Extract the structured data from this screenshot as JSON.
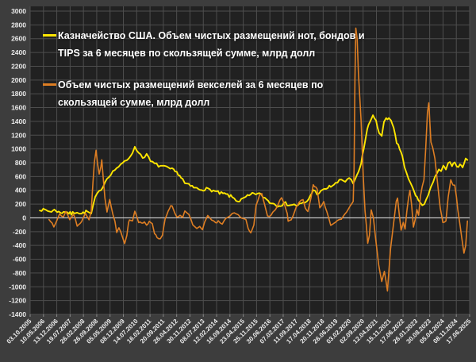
{
  "colors": {
    "outer_background": "#3d3d3d",
    "plot_background": "#212121",
    "gridline": "#4e4e4e",
    "zero_line": "#d9d9d9",
    "axis_text": "#ececec",
    "series_notes_bonds_tips": "#ffe600",
    "series_bills": "#de7e23"
  },
  "legend": {
    "items": [
      {
        "swatch": "yellow-line-swatch",
        "color": "#ffe600"
      },
      {
        "swatch": "orange-line-swatch",
        "color": "#de7e23"
      }
    ]
  },
  "chart_data": {
    "type": "line",
    "title": "",
    "xlabel": "",
    "ylabel": "",
    "grid": true,
    "legend_position": "top-left-inside",
    "y_axis": {
      "min": -1400,
      "max": 3000,
      "step": 200,
      "ticks": [
        "3000",
        "2800",
        "2600",
        "2400",
        "2200",
        "2000",
        "1800",
        "1600",
        "1400",
        "1200",
        "1000",
        "800",
        "600",
        "400",
        "200",
        "0",
        "-200",
        "-400",
        "-600",
        "-800",
        "-1000",
        "-1200",
        "-1400"
      ]
    },
    "x_axis": {
      "labels": [
        "03.10.2005",
        "10.05.2006",
        "13.12.2006",
        "19.07.2007",
        "26.02.2008",
        "26.09.2008",
        "05.05.2009",
        "08.12.2009",
        "14.07.2010",
        "16.02.2011",
        "20.09.2011",
        "26.04.2012",
        "30.11.2012",
        "08.07.2013",
        "12.02.2014",
        "16.09.2014",
        "23.04.2015",
        "25.11.2015",
        "30.06.2016",
        "07.02.2017",
        "11.09.2017",
        "17.04.2018",
        "20.11.2018",
        "26.06.2019",
        "03.02.2020",
        "02.09.2020",
        "12.04.2021",
        "15.11.2021",
        "17.06.2022",
        "26.01.2023",
        "30.08.2023",
        "05.04.2024",
        "08.11.2024",
        "17.06.2025"
      ]
    },
    "series": [
      {
        "name": "Казначейство США. Объем чистых размещений нот, бондов и TIPS за 6 месяцев по скользящей сумме, млрд долл",
        "color": "#ffe600",
        "width": 1.9,
        "fuzz": 26,
        "points": [
          [
            0.022,
            130
          ],
          [
            0.03,
            110
          ],
          [
            0.036,
            115
          ],
          [
            0.045,
            92
          ],
          [
            0.052,
            105
          ],
          [
            0.058,
            115
          ],
          [
            0.065,
            80
          ],
          [
            0.07,
            69
          ],
          [
            0.076,
            95
          ],
          [
            0.081,
            92
          ],
          [
            0.088,
            70
          ],
          [
            0.094,
            58
          ],
          [
            0.1,
            80
          ],
          [
            0.107,
            92
          ],
          [
            0.112,
            70
          ],
          [
            0.117,
            58
          ],
          [
            0.124,
            85
          ],
          [
            0.13,
            92
          ],
          [
            0.135,
            70
          ],
          [
            0.139,
            58
          ],
          [
            0.148,
            300
          ],
          [
            0.157,
            380
          ],
          [
            0.166,
            461
          ],
          [
            0.171,
            530
          ],
          [
            0.179,
            610
          ],
          [
            0.188,
            668
          ],
          [
            0.197,
            726
          ],
          [
            0.206,
            760
          ],
          [
            0.215,
            818
          ],
          [
            0.224,
            864
          ],
          [
            0.233,
            956
          ],
          [
            0.238,
            1014
          ],
          [
            0.247,
            956
          ],
          [
            0.256,
            875
          ],
          [
            0.265,
            922
          ],
          [
            0.274,
            818
          ],
          [
            0.283,
            784
          ],
          [
            0.292,
            760
          ],
          [
            0.301,
            749
          ],
          [
            0.31,
            726
          ],
          [
            0.323,
            700
          ],
          [
            0.337,
            640
          ],
          [
            0.347,
            560
          ],
          [
            0.352,
            500
          ],
          [
            0.365,
            460
          ],
          [
            0.383,
            415
          ],
          [
            0.397,
            420
          ],
          [
            0.413,
            403
          ],
          [
            0.431,
            357
          ],
          [
            0.446,
            340
          ],
          [
            0.46,
            300
          ],
          [
            0.473,
            242
          ],
          [
            0.484,
            270
          ],
          [
            0.491,
            300
          ],
          [
            0.502,
            330
          ],
          [
            0.509,
            357
          ],
          [
            0.522,
            346
          ],
          [
            0.534,
            290
          ],
          [
            0.545,
            230
          ],
          [
            0.563,
            184
          ],
          [
            0.581,
            207
          ],
          [
            0.592,
            190
          ],
          [
            0.605,
            184
          ],
          [
            0.617,
            200
          ],
          [
            0.63,
            230
          ],
          [
            0.644,
            403
          ],
          [
            0.653,
            357
          ],
          [
            0.662,
            380
          ],
          [
            0.677,
            438
          ],
          [
            0.695,
            495
          ],
          [
            0.708,
            553
          ],
          [
            0.717,
            530
          ],
          [
            0.726,
            587
          ],
          [
            0.735,
            495
          ],
          [
            0.74,
            553
          ],
          [
            0.747,
            668
          ],
          [
            0.753,
            783
          ],
          [
            0.756,
            898
          ],
          [
            0.762,
            1100
          ],
          [
            0.767,
            1300
          ],
          [
            0.773,
            1394
          ],
          [
            0.78,
            1475
          ],
          [
            0.787,
            1420
          ],
          [
            0.794,
            1221
          ],
          [
            0.8,
            1180
          ],
          [
            0.805,
            1400
          ],
          [
            0.81,
            1460
          ],
          [
            0.816,
            1440
          ],
          [
            0.821,
            1400
          ],
          [
            0.827,
            1300
          ],
          [
            0.834,
            1094
          ],
          [
            0.841,
            1000
          ],
          [
            0.847,
            898
          ],
          [
            0.852,
            726
          ],
          [
            0.861,
            560
          ],
          [
            0.87,
            438
          ],
          [
            0.877,
            330
          ],
          [
            0.883,
            260
          ],
          [
            0.888,
            230
          ],
          [
            0.892,
            173
          ],
          [
            0.897,
            200
          ],
          [
            0.901,
            265
          ],
          [
            0.906,
            330
          ],
          [
            0.912,
            438
          ],
          [
            0.917,
            530
          ],
          [
            0.921,
            610
          ],
          [
            0.926,
            660
          ],
          [
            0.93,
            702
          ],
          [
            0.935,
            680
          ],
          [
            0.94,
            740
          ],
          [
            0.946,
            700
          ],
          [
            0.951,
            780
          ],
          [
            0.955,
            818
          ],
          [
            0.96,
            750
          ],
          [
            0.966,
            800
          ],
          [
            0.971,
            730
          ],
          [
            0.978,
            760
          ],
          [
            0.984,
            720
          ],
          [
            0.987,
            800
          ],
          [
            0.991,
            876
          ],
          [
            0.995,
            840
          ]
        ]
      },
      {
        "name": "Объем чистых размещений векселей за 6 месяцев по скользящей сумме, млрд долл",
        "color": "#de7e23",
        "width": 1.6,
        "fuzz": 13,
        "points": [
          [
            0.043,
            -23
          ],
          [
            0.05,
            -80
          ],
          [
            0.054,
            -138
          ],
          [
            0.061,
            -30
          ],
          [
            0.067,
            58
          ],
          [
            0.076,
            12
          ],
          [
            0.081,
            92
          ],
          [
            0.09,
            -23
          ],
          [
            0.099,
            58
          ],
          [
            0.107,
            -115
          ],
          [
            0.117,
            -58
          ],
          [
            0.126,
            58
          ],
          [
            0.134,
            -23
          ],
          [
            0.139,
            100
          ],
          [
            0.143,
            518
          ],
          [
            0.146,
            800
          ],
          [
            0.15,
            980
          ],
          [
            0.153,
            800
          ],
          [
            0.157,
            634
          ],
          [
            0.161,
            750
          ],
          [
            0.163,
            841
          ],
          [
            0.166,
            600
          ],
          [
            0.17,
            288
          ],
          [
            0.175,
            92
          ],
          [
            0.181,
            265
          ],
          [
            0.188,
            58
          ],
          [
            0.193,
            -50
          ],
          [
            0.197,
            -219
          ],
          [
            0.202,
            -150
          ],
          [
            0.206,
            -196
          ],
          [
            0.211,
            -300
          ],
          [
            0.215,
            -369
          ],
          [
            0.22,
            -253
          ],
          [
            0.224,
            -58
          ],
          [
            0.226,
            -23
          ],
          [
            0.233,
            -46
          ],
          [
            0.238,
            92
          ],
          [
            0.242,
            35
          ],
          [
            0.247,
            -58
          ],
          [
            0.253,
            -81
          ],
          [
            0.26,
            -58
          ],
          [
            0.265,
            -104
          ],
          [
            0.271,
            -58
          ],
          [
            0.278,
            -81
          ],
          [
            0.283,
            -219
          ],
          [
            0.289,
            -277
          ],
          [
            0.296,
            -311
          ],
          [
            0.301,
            -253
          ],
          [
            0.307,
            -23
          ],
          [
            0.314,
            92
          ],
          [
            0.32,
            173
          ],
          [
            0.323,
            178
          ],
          [
            0.329,
            69
          ],
          [
            0.334,
            12
          ],
          [
            0.341,
            35
          ],
          [
            0.347,
            0
          ],
          [
            0.352,
            92
          ],
          [
            0.361,
            58
          ],
          [
            0.37,
            -104
          ],
          [
            0.379,
            -161
          ],
          [
            0.386,
            -115
          ],
          [
            0.392,
            -173
          ],
          [
            0.397,
            -58
          ],
          [
            0.404,
            35
          ],
          [
            0.413,
            -23
          ],
          [
            0.422,
            -81
          ],
          [
            0.428,
            -46
          ],
          [
            0.437,
            -81
          ],
          [
            0.446,
            0
          ],
          [
            0.451,
            12
          ],
          [
            0.46,
            69
          ],
          [
            0.469,
            69
          ],
          [
            0.478,
            12
          ],
          [
            0.486,
            -23
          ],
          [
            0.491,
            -23
          ],
          [
            0.496,
            -161
          ],
          [
            0.502,
            -219
          ],
          [
            0.509,
            -104
          ],
          [
            0.514,
            184
          ],
          [
            0.522,
            322
          ],
          [
            0.527,
            345
          ],
          [
            0.533,
            207
          ],
          [
            0.54,
            35
          ],
          [
            0.545,
            12
          ],
          [
            0.552,
            92
          ],
          [
            0.558,
            115
          ],
          [
            0.565,
            207
          ],
          [
            0.572,
            300
          ],
          [
            0.578,
            207
          ],
          [
            0.585,
            58
          ],
          [
            0.587,
            -58
          ],
          [
            0.594,
            -23
          ],
          [
            0.599,
            35
          ],
          [
            0.605,
            150
          ],
          [
            0.612,
            230
          ],
          [
            0.621,
            265
          ],
          [
            0.626,
            150
          ],
          [
            0.632,
            92
          ],
          [
            0.639,
            288
          ],
          [
            0.644,
            472
          ],
          [
            0.65,
            438
          ],
          [
            0.653,
            415
          ],
          [
            0.659,
            150
          ],
          [
            0.668,
            230
          ],
          [
            0.675,
            92
          ],
          [
            0.684,
            -104
          ],
          [
            0.695,
            -58
          ],
          [
            0.708,
            -23
          ],
          [
            0.72,
            92
          ],
          [
            0.729,
            184
          ],
          [
            0.735,
            242
          ],
          [
            0.737,
            700
          ],
          [
            0.739,
            2000
          ],
          [
            0.741,
            2750
          ],
          [
            0.744,
            2600
          ],
          [
            0.747,
            2100
          ],
          [
            0.753,
            1400
          ],
          [
            0.758,
            600
          ],
          [
            0.762,
            100
          ],
          [
            0.765,
            -104
          ],
          [
            0.768,
            -369
          ],
          [
            0.772,
            -250
          ],
          [
            0.776,
            115
          ],
          [
            0.781,
            0
          ],
          [
            0.786,
            -288
          ],
          [
            0.793,
            -680
          ],
          [
            0.8,
            -930
          ],
          [
            0.806,
            -770
          ],
          [
            0.813,
            -1060
          ],
          [
            0.82,
            -450
          ],
          [
            0.828,
            -23
          ],
          [
            0.833,
            242
          ],
          [
            0.836,
            288
          ],
          [
            0.84,
            35
          ],
          [
            0.844,
            -173
          ],
          [
            0.849,
            -58
          ],
          [
            0.853,
            -161
          ],
          [
            0.857,
            92
          ],
          [
            0.861,
            288
          ],
          [
            0.864,
            403
          ],
          [
            0.868,
            184
          ],
          [
            0.872,
            -138
          ],
          [
            0.876,
            -23
          ],
          [
            0.88,
            127
          ],
          [
            0.884,
            35
          ],
          [
            0.888,
            322
          ],
          [
            0.892,
            461
          ],
          [
            0.896,
            553
          ],
          [
            0.9,
            1000
          ],
          [
            0.904,
            1530
          ],
          [
            0.907,
            1670
          ],
          [
            0.912,
            1100
          ],
          [
            0.916,
            1014
          ],
          [
            0.921,
            864
          ],
          [
            0.927,
            500
          ],
          [
            0.933,
            150
          ],
          [
            0.939,
            -58
          ],
          [
            0.946,
            -46
          ],
          [
            0.951,
            300
          ],
          [
            0.957,
            553
          ],
          [
            0.962,
            480
          ],
          [
            0.966,
            470
          ],
          [
            0.97,
            300
          ],
          [
            0.973,
            127
          ],
          [
            0.978,
            -100
          ],
          [
            0.982,
            -288
          ],
          [
            0.987,
            -507
          ],
          [
            0.991,
            -400
          ],
          [
            0.995,
            -46
          ]
        ]
      }
    ]
  }
}
